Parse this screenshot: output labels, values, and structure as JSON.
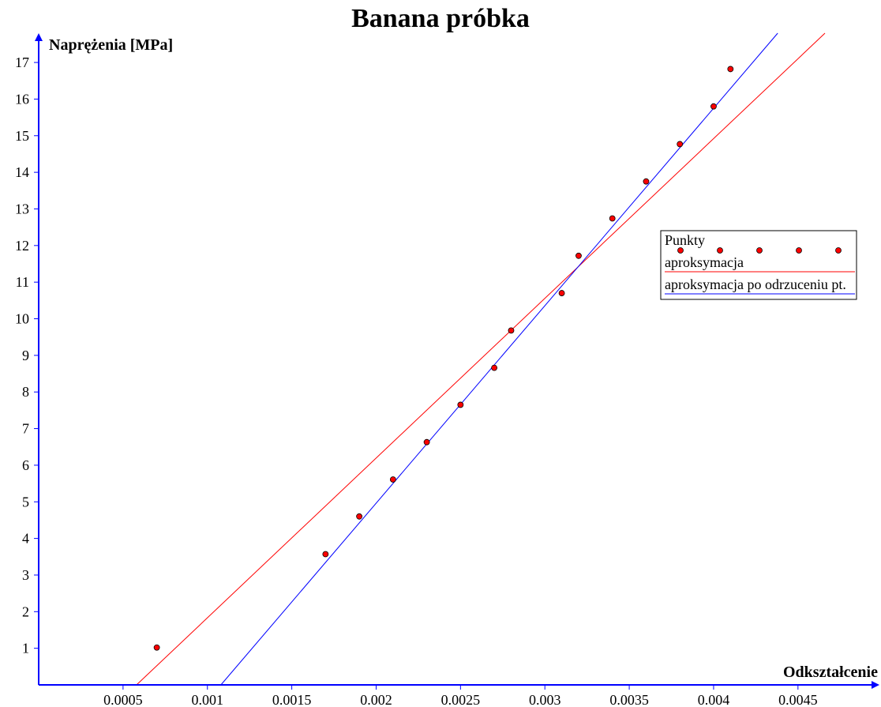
{
  "chart_data": {
    "type": "scatter",
    "title": "Banana próbka",
    "xlabel": "Odkształcenie",
    "ylabel": "Naprężenia [MPa]",
    "xlim": [
      0,
      0.00495
    ],
    "ylim": [
      0,
      17.8
    ],
    "x_ticks": [
      0.0005,
      0.001,
      0.0015,
      0.002,
      0.0025,
      0.003,
      0.0035,
      0.004,
      0.0045
    ],
    "x_tick_labels": [
      "0.0005",
      "0.001",
      "0.0015",
      "0.002",
      "0.0025",
      "0.003",
      "0.0035",
      "0.004",
      "0.0045"
    ],
    "y_ticks": [
      1,
      2,
      3,
      4,
      5,
      6,
      7,
      8,
      9,
      10,
      11,
      12,
      13,
      14,
      15,
      16,
      17
    ],
    "y_tick_labels": [
      "1",
      "2",
      "3",
      "4",
      "5",
      "6",
      "7",
      "8",
      "9",
      "10",
      "11",
      "12",
      "13",
      "14",
      "15",
      "16",
      "17"
    ],
    "grid": false,
    "legend_position": "right",
    "points": {
      "name": "Punkty",
      "color": "#ff0000",
      "x": [
        0.0007,
        0.0017,
        0.0019,
        0.0021,
        0.0023,
        0.0025,
        0.0027,
        0.0028,
        0.0031,
        0.0032,
        0.0034,
        0.0036,
        0.0038,
        0.004,
        0.0041
      ],
      "y": [
        1.02,
        3.57,
        4.6,
        5.61,
        6.63,
        7.65,
        8.66,
        9.68,
        10.7,
        11.72,
        12.74,
        13.75,
        14.77,
        15.8,
        16.82
      ]
    },
    "lines": [
      {
        "name": "aproksymacja",
        "color": "#ff0000",
        "x": [
          0.00058,
          0.00466
        ],
        "y": [
          0,
          17.8
        ]
      },
      {
        "name": "aproksymacja po odrzuceniu pt.",
        "color": "#0000ff",
        "x": [
          0.00108,
          0.00438
        ],
        "y": [
          0,
          17.8
        ]
      }
    ]
  }
}
